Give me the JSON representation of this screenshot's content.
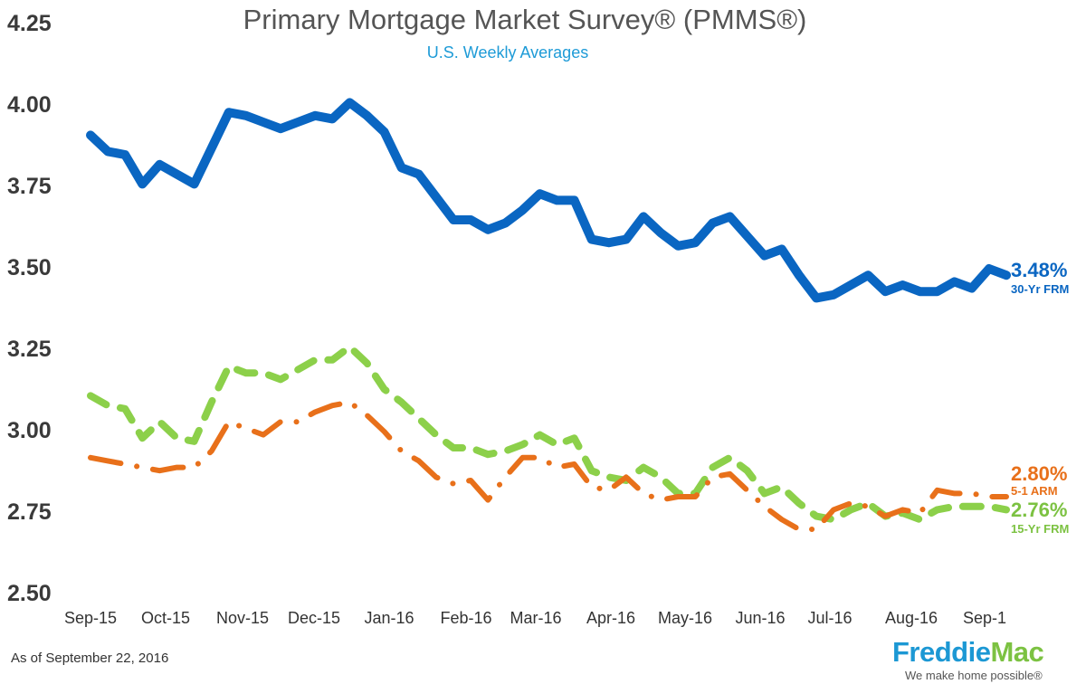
{
  "chart_data": {
    "type": "line",
    "title": "Primary Mortgage Market Survey® (PMMS®)",
    "subtitle": "U.S. Weekly Averages",
    "xlabel": "",
    "ylabel": "",
    "ylim": [
      2.5,
      4.25
    ],
    "yticks": [
      "4.25",
      "4.00",
      "3.75",
      "3.50",
      "3.25",
      "3.00",
      "2.75",
      "2.50"
    ],
    "xtick_labels": [
      "Sep-15",
      "Oct-15",
      "Nov-15",
      "Dec-15",
      "Jan-16",
      "Feb-16",
      "Mar-16",
      "Apr-16",
      "May-16",
      "Jun-16",
      "Jul-16",
      "Aug-16",
      "Sep-1"
    ],
    "grid": false,
    "series": [
      {
        "name": "30-Yr FRM",
        "end_label": "3.48%",
        "color": "#0a66c2",
        "style": "solid",
        "values": [
          3.91,
          3.86,
          3.85,
          3.76,
          3.82,
          3.79,
          3.76,
          3.87,
          3.98,
          3.97,
          3.95,
          3.93,
          3.95,
          3.97,
          3.96,
          4.01,
          3.97,
          3.92,
          3.81,
          3.79,
          3.72,
          3.65,
          3.65,
          3.62,
          3.64,
          3.68,
          3.73,
          3.71,
          3.71,
          3.59,
          3.58,
          3.59,
          3.66,
          3.61,
          3.57,
          3.58,
          3.64,
          3.66,
          3.6,
          3.54,
          3.56,
          3.48,
          3.41,
          3.42,
          3.45,
          3.48,
          3.43,
          3.45,
          3.43,
          3.43,
          3.46,
          3.44,
          3.5,
          3.48
        ]
      },
      {
        "name": "5-1 ARM",
        "end_label": "2.80%",
        "color": "#e8701a",
        "style": "dash-dot",
        "values": [
          2.92,
          2.91,
          2.9,
          2.89,
          2.88,
          2.89,
          2.89,
          2.94,
          3.03,
          3.01,
          2.99,
          3.03,
          3.03,
          3.06,
          3.08,
          3.09,
          3.05,
          3.0,
          2.94,
          2.91,
          2.86,
          2.84,
          2.85,
          2.79,
          2.86,
          2.92,
          2.92,
          2.89,
          2.9,
          2.83,
          2.82,
          2.86,
          2.81,
          2.79,
          2.8,
          2.8,
          2.86,
          2.87,
          2.82,
          2.77,
          2.73,
          2.7,
          2.7,
          2.76,
          2.78,
          2.77,
          2.74,
          2.76,
          2.75,
          2.82,
          2.81,
          2.81,
          2.8,
          2.8
        ]
      },
      {
        "name": "15-Yr FRM",
        "end_label": "2.76%",
        "color": "#8cd04a",
        "style": "dashed",
        "values": [
          3.11,
          3.08,
          3.07,
          2.98,
          3.03,
          2.98,
          2.97,
          3.09,
          3.2,
          3.18,
          3.18,
          3.16,
          3.19,
          3.22,
          3.22,
          3.26,
          3.21,
          3.13,
          3.09,
          3.04,
          2.99,
          2.95,
          2.95,
          2.93,
          2.94,
          2.96,
          2.99,
          2.96,
          2.98,
          2.88,
          2.86,
          2.85,
          2.89,
          2.86,
          2.81,
          2.81,
          2.89,
          2.92,
          2.88,
          2.81,
          2.83,
          2.78,
          2.74,
          2.73,
          2.76,
          2.78,
          2.74,
          2.75,
          2.73,
          2.76,
          2.77,
          2.77,
          2.77,
          2.76
        ]
      }
    ]
  },
  "footer": {
    "as_of": "As of September 22, 2016"
  },
  "logo": {
    "brand_part1": "Freddie",
    "brand_part2": "Mac",
    "tagline": "We make home possible®"
  }
}
